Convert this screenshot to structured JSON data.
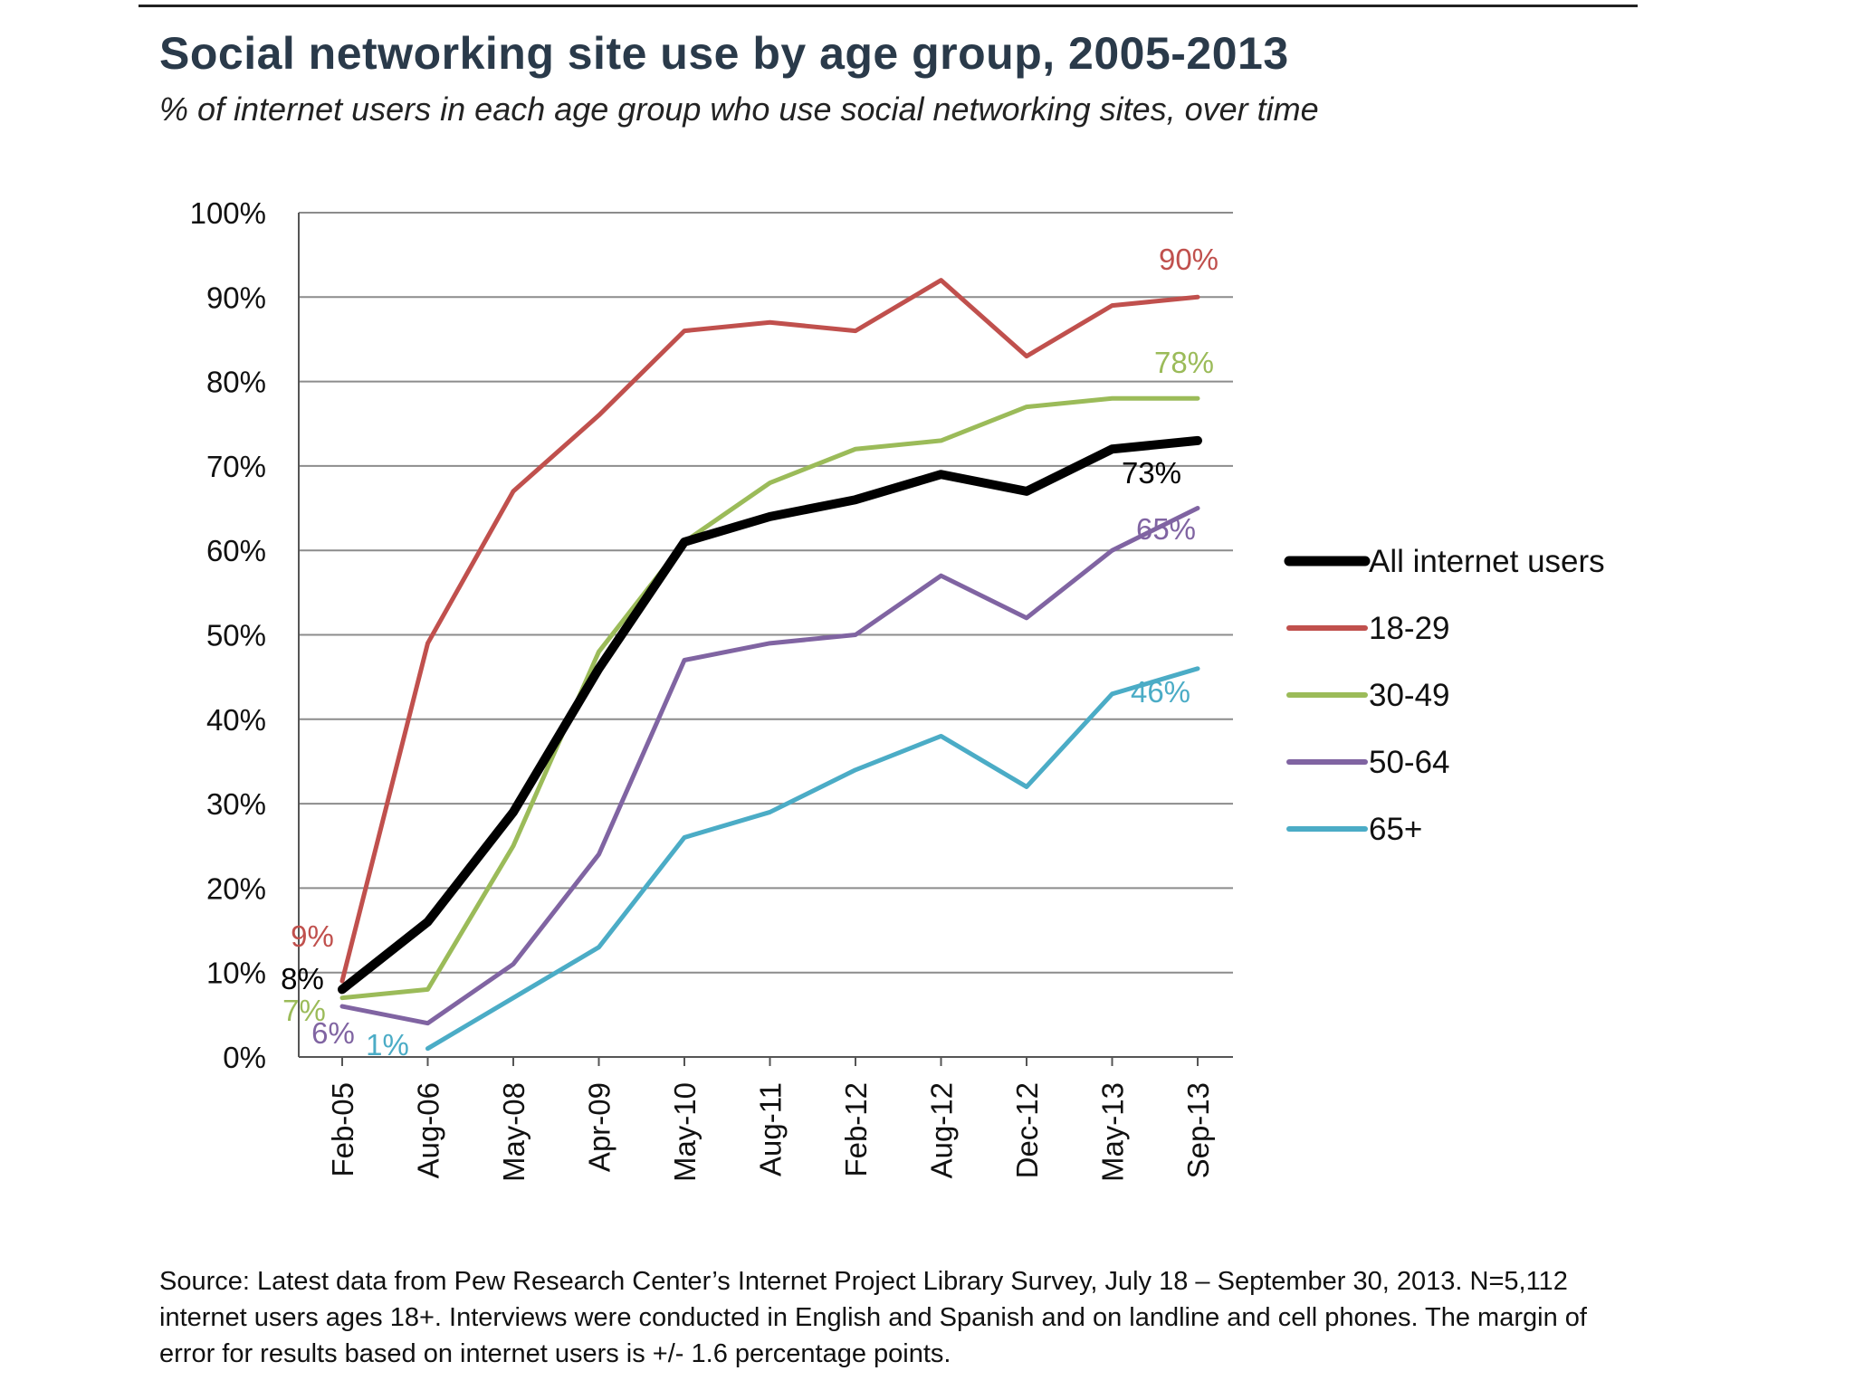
{
  "chart_data": {
    "type": "line",
    "title": "Social networking site use by age group, 2005-2013",
    "subtitle": "% of internet users in each age group who use social networking sites, over time",
    "categories": [
      "Feb-05",
      "Aug-06",
      "May-08",
      "Apr-09",
      "May-10",
      "Aug-11",
      "Feb-12",
      "Aug-12",
      "Dec-12",
      "May-13",
      "Sep-13"
    ],
    "y_ticks": [
      "0%",
      "10%",
      "20%",
      "30%",
      "40%",
      "50%",
      "60%",
      "70%",
      "80%",
      "90%",
      "100%"
    ],
    "ylim": [
      0,
      100
    ],
    "grid": "horizontal",
    "legend_position": "right",
    "series": [
      {
        "name": "All internet users",
        "color": "#000000",
        "width": "thick",
        "values": [
          8,
          16,
          29,
          46,
          61,
          64,
          66,
          69,
          67,
          72,
          73
        ]
      },
      {
        "name": "18-29",
        "color": "#c0504d",
        "width": "normal",
        "values": [
          9,
          49,
          67,
          76,
          86,
          87,
          86,
          92,
          83,
          89,
          90
        ]
      },
      {
        "name": "30-49",
        "color": "#9bbb59",
        "width": "normal",
        "values": [
          7,
          8,
          25,
          48,
          61,
          68,
          72,
          73,
          77,
          78,
          78
        ]
      },
      {
        "name": "50-64",
        "color": "#8064a2",
        "width": "normal",
        "values": [
          6,
          4,
          11,
          24,
          47,
          49,
          50,
          57,
          52,
          60,
          65
        ]
      },
      {
        "name": "65+",
        "color": "#4bacc6",
        "width": "normal",
        "values": [
          null,
          1,
          7,
          13,
          26,
          29,
          34,
          38,
          32,
          43,
          46
        ]
      }
    ],
    "annotations": [
      {
        "text": "90%",
        "series": "18-29",
        "at": "Sep-13"
      },
      {
        "text": "78%",
        "series": "30-49",
        "at": "Sep-13"
      },
      {
        "text": "73%",
        "series": "All internet users",
        "at": "Sep-13"
      },
      {
        "text": "65%",
        "series": "50-64",
        "at": "Sep-13"
      },
      {
        "text": "46%",
        "series": "65+",
        "at": "Sep-13"
      },
      {
        "text": "9%",
        "series": "18-29",
        "at": "Feb-05"
      },
      {
        "text": "8%",
        "series": "All internet users",
        "at": "Feb-05"
      },
      {
        "text": "7%",
        "series": "30-49",
        "at": "Feb-05"
      },
      {
        "text": "6%",
        "series": "50-64",
        "at": "Feb-05"
      },
      {
        "text": "1%",
        "series": "65+",
        "at": "Aug-06"
      }
    ]
  },
  "source_note": "Source: Latest data from Pew Research Center’s Internet Project Library Survey, July 18 – September 30, 2013. N=5,112 internet users ages 18+. Interviews were conducted in English and Spanish and on landline and cell phones.  The margin of error for results based on internet users is +/- 1.6 percentage points."
}
